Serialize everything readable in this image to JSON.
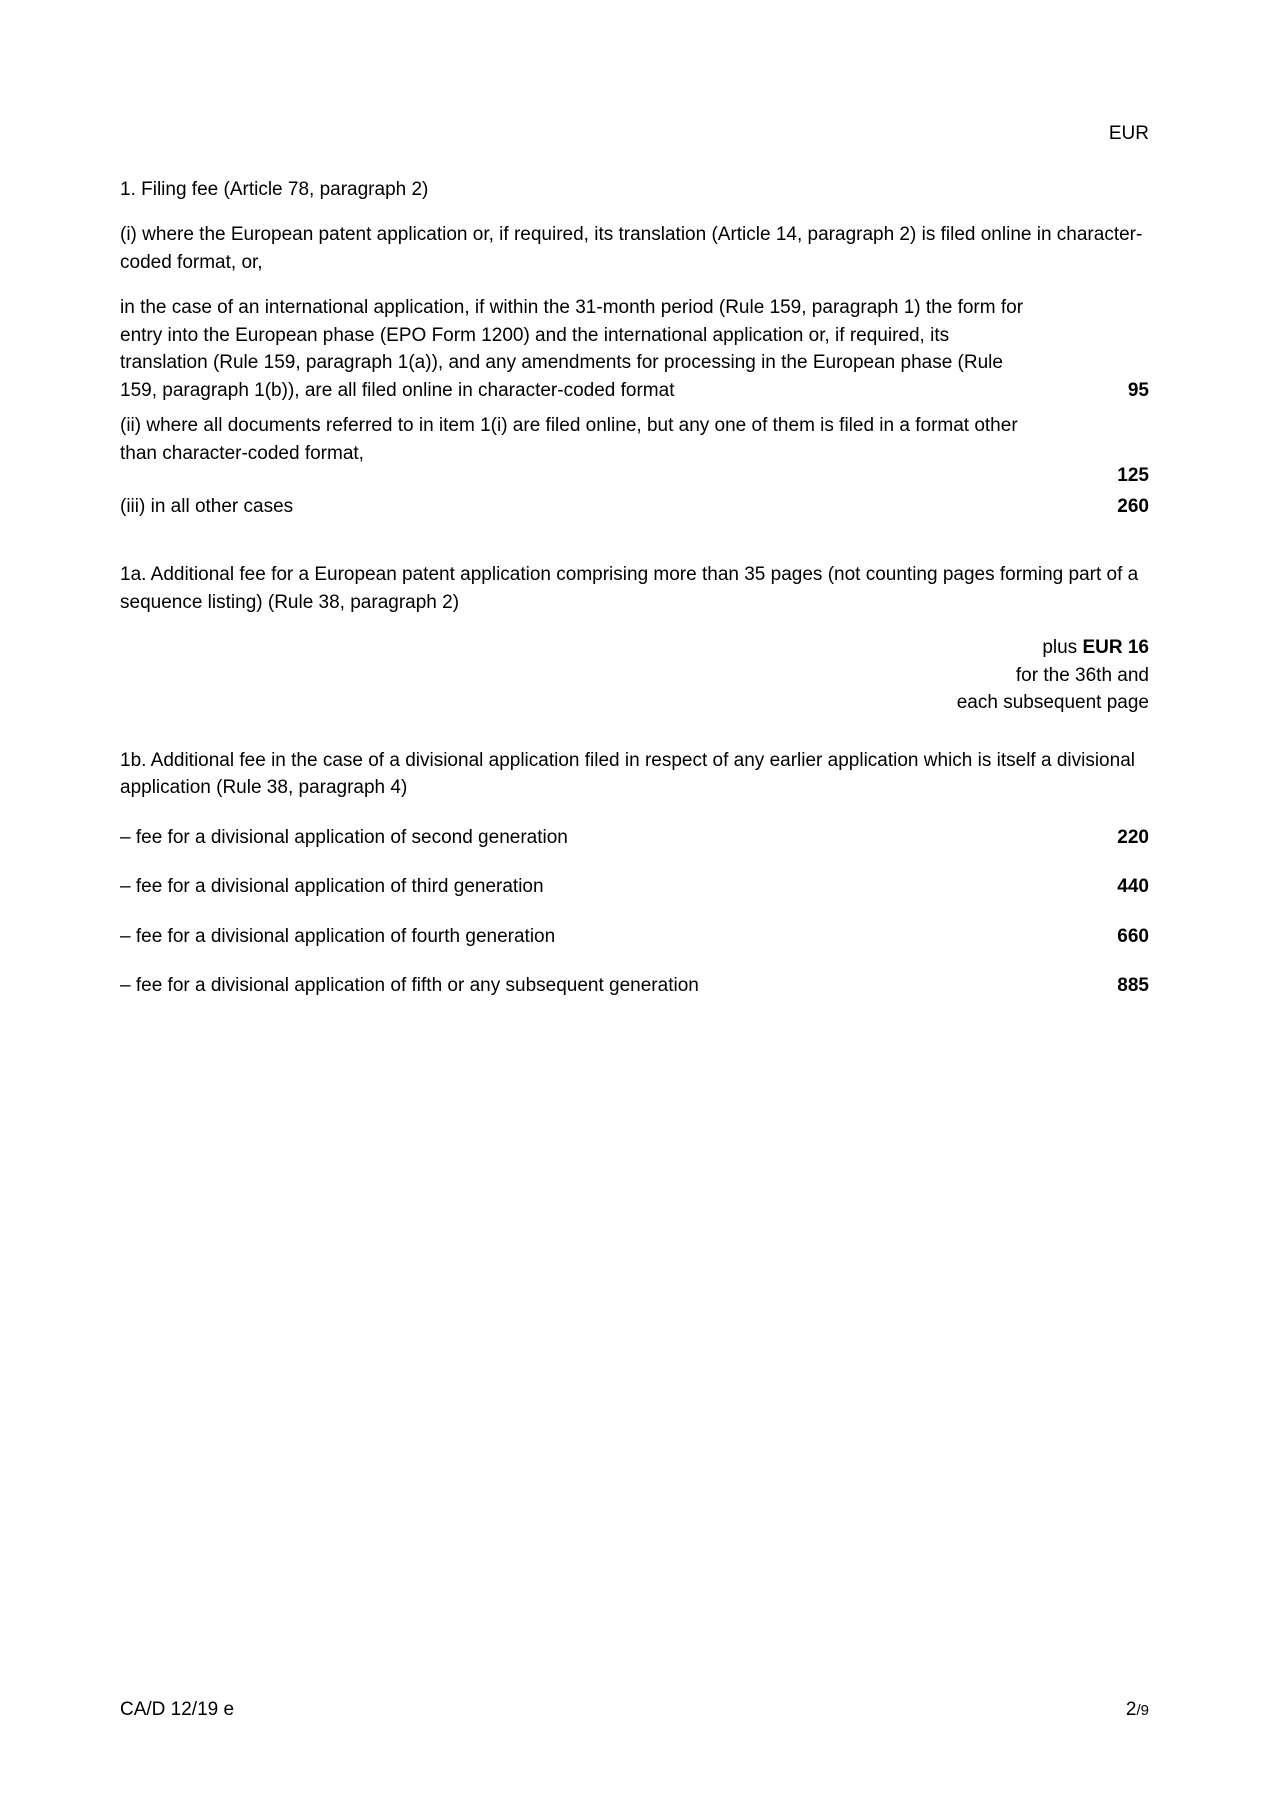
{
  "header": {
    "currency": "EUR"
  },
  "section1": {
    "title": "1.  Filing fee (Article 78, paragraph 2)",
    "item_i_part1": "(i) where the European patent application or, if required, its translation (Article 14, paragraph 2) is filed online in character-coded format, or,",
    "item_i_part2": "in the case of an international application, if within the 31-month period (Rule 159, paragraph 1) the form for entry into the European phase  (EPO Form 1200) and the international application or, if required, its  translation (Rule 159, paragraph 1(a)), and any amendments for processing in the European phase (Rule 159, paragraph 1(b)), are all filed  online in character-coded format",
    "item_i_amount": "95",
    "item_ii_text": "(ii) where all documents referred to in item 1(i) are filed online, but any one  of them is filed in a format other than character-coded format,",
    "item_ii_amount": "125",
    "item_iii_text": "(iii) in all other cases",
    "item_iii_amount": "260"
  },
  "section1a": {
    "title": "1a. Additional fee for a European patent application comprising more than 35 pages (not counting pages forming part of a sequence listing) (Rule 38, paragraph 2)",
    "note_prefix": "plus ",
    "note_bold": "EUR 16",
    "note_line2": "for the 36th and",
    "note_line3": "each subsequent page"
  },
  "section1b": {
    "title": "1b. Additional fee in the case of a divisional application filed in respect of any earlier application which is itself a divisional application (Rule 38, paragraph 4)",
    "fees": [
      {
        "label": "– fee for a divisional application of second generation",
        "amount": "220"
      },
      {
        "label": "– fee for a divisional application of third generation",
        "amount": "440"
      },
      {
        "label": "– fee for a divisional application of fourth generation",
        "amount": "660"
      },
      {
        "label": "– fee for a divisional application of fifth or any subsequent generation",
        "amount": "885"
      }
    ]
  },
  "footer": {
    "doc_ref": "CA/D 12/19 e",
    "page_current": "2",
    "page_total": "/9"
  }
}
